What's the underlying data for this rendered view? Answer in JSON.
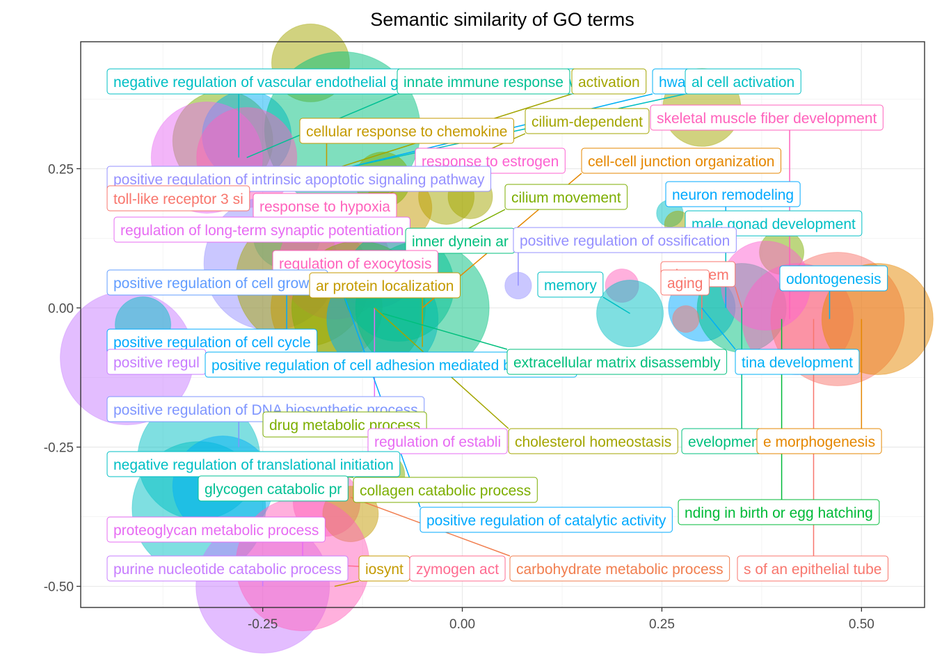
{
  "chart_data": {
    "type": "scatter",
    "title": "Semantic similarity of GO terms",
    "xlabel": "",
    "ylabel": "",
    "xlim": [
      -0.478,
      0.579
    ],
    "ylim": [
      -0.538,
      0.478
    ],
    "x_ticks": [
      -0.25,
      0.0,
      0.25,
      0.5
    ],
    "x_tick_labels": [
      "-0.25",
      "0.00",
      "0.25",
      "0.50"
    ],
    "y_ticks": [
      -0.5,
      -0.25,
      0.0,
      0.25
    ],
    "y_tick_labels": [
      "-0.50",
      "-0.25",
      "0.00",
      "0.25"
    ],
    "grid": true,
    "legend": "none",
    "bubbles": [
      {
        "x": -0.19,
        "y": 0.44,
        "size": 0.035,
        "color": "#a3a500"
      },
      {
        "x": -0.3,
        "y": 0.3,
        "size": 0.045,
        "color": "#7cae00"
      },
      {
        "x": -0.27,
        "y": 0.31,
        "size": 0.04,
        "color": "#00b0f6"
      },
      {
        "x": -0.15,
        "y": 0.32,
        "size": 0.07,
        "color": "#00bf7d"
      },
      {
        "x": -0.32,
        "y": 0.27,
        "size": 0.05,
        "color": "#e76bf3"
      },
      {
        "x": -0.27,
        "y": 0.27,
        "size": 0.045,
        "color": "#ff62bc"
      },
      {
        "x": -0.22,
        "y": 0.13,
        "size": 0.03,
        "color": "#00bfc4"
      },
      {
        "x": -0.02,
        "y": 0.2,
        "size": 0.025,
        "color": "#a3a500"
      },
      {
        "x": -0.08,
        "y": 0.18,
        "size": 0.03,
        "color": "#c49a00"
      },
      {
        "x": -0.1,
        "y": 0.23,
        "size": 0.025,
        "color": "#7cae00"
      },
      {
        "x": 0.01,
        "y": 0.2,
        "size": 0.02,
        "color": "#a3a500"
      },
      {
        "x": -0.24,
        "y": 0.08,
        "size": 0.06,
        "color": "#9590ff"
      },
      {
        "x": -0.2,
        "y": 0.05,
        "size": 0.06,
        "color": "#a3a500"
      },
      {
        "x": -0.16,
        "y": 0.08,
        "size": 0.05,
        "color": "#ff62bc"
      },
      {
        "x": -0.11,
        "y": 0.08,
        "size": 0.04,
        "color": "#e76bf3"
      },
      {
        "x": -0.17,
        "y": 0.0,
        "size": 0.05,
        "color": "#c49a00"
      },
      {
        "x": -0.13,
        "y": 0.0,
        "size": 0.06,
        "color": "#7cae00"
      },
      {
        "x": -0.1,
        "y": -0.02,
        "size": 0.05,
        "color": "#00b0f6"
      },
      {
        "x": -0.05,
        "y": 0.0,
        "size": 0.06,
        "color": "#00bf7d"
      },
      {
        "x": -0.08,
        "y": 0.04,
        "size": 0.05,
        "color": "#00c094"
      },
      {
        "x": 0.07,
        "y": 0.04,
        "size": 0.012,
        "color": "#9590ff"
      },
      {
        "x": 0.2,
        "y": 0.04,
        "size": 0.015,
        "color": "#ff62bc"
      },
      {
        "x": 0.21,
        "y": -0.01,
        "size": 0.03,
        "color": "#00bfc4"
      },
      {
        "x": 0.26,
        "y": 0.17,
        "size": 0.012,
        "color": "#00bfc4"
      },
      {
        "x": 0.27,
        "y": 0.15,
        "size": 0.012,
        "color": "#a3a500"
      },
      {
        "x": 0.3,
        "y": 0.36,
        "size": 0.035,
        "color": "#a3a500"
      },
      {
        "x": 0.4,
        "y": 0.1,
        "size": 0.02,
        "color": "#7cae00"
      },
      {
        "x": 0.3,
        "y": 0.0,
        "size": 0.03,
        "color": "#00a9ff"
      },
      {
        "x": 0.35,
        "y": 0.0,
        "size": 0.04,
        "color": "#00bf7d"
      },
      {
        "x": 0.42,
        "y": -0.02,
        "size": 0.05,
        "color": "#ff62bc"
      },
      {
        "x": 0.47,
        "y": -0.02,
        "size": 0.06,
        "color": "#f8766d"
      },
      {
        "x": 0.52,
        "y": -0.02,
        "size": 0.05,
        "color": "#e58700"
      },
      {
        "x": 0.38,
        "y": 0.04,
        "size": 0.04,
        "color": "#fd61d1"
      },
      {
        "x": 0.28,
        "y": -0.02,
        "size": 0.012,
        "color": "#f8766d"
      },
      {
        "x": -0.42,
        "y": -0.09,
        "size": 0.06,
        "color": "#c77cff"
      },
      {
        "x": -0.4,
        "y": -0.03,
        "size": 0.025,
        "color": "#00bfc4"
      },
      {
        "x": -0.33,
        "y": -0.27,
        "size": 0.055,
        "color": "#00bfc4"
      },
      {
        "x": -0.33,
        "y": -0.36,
        "size": 0.06,
        "color": "#00bfc4"
      },
      {
        "x": -0.3,
        "y": -0.32,
        "size": 0.045,
        "color": "#00b0f6"
      },
      {
        "x": -0.17,
        "y": -0.35,
        "size": 0.03,
        "color": "#ff62bc"
      },
      {
        "x": -0.14,
        "y": -0.37,
        "size": 0.025,
        "color": "#c49a00"
      },
      {
        "x": -0.25,
        "y": -0.5,
        "size": 0.06,
        "color": "#c77cff"
      },
      {
        "x": -0.2,
        "y": -0.46,
        "size": 0.06,
        "color": "#ff62bc"
      },
      {
        "x": -0.1,
        "y": -0.3,
        "size": 0.02,
        "color": "#7cae00"
      }
    ],
    "labels": [
      {
        "text": "negative regulation of vascular endothelial growth factor signaling pathway",
        "color": "#00bfc4",
        "x": -0.28,
        "y": 0.27
      },
      {
        "text": "innate immune response",
        "color": "#00c094",
        "x": -0.27,
        "y": 0.27
      },
      {
        "text": "activation",
        "color": "#a3a500",
        "x": -0.16,
        "y": 0.25
      },
      {
        "text": "hway",
        "color": "#00b0f6",
        "x": -0.15,
        "y": 0.25
      },
      {
        "text": "al cell activation",
        "color": "#00bfc4",
        "x": -0.15,
        "y": 0.25
      },
      {
        "text": "cilium-dependent",
        "color": "#a3a500",
        "x": -0.1,
        "y": 0.2
      },
      {
        "text": "cellular response to chemokine",
        "color": "#c49a00",
        "x": -0.17,
        "y": 0.25
      },
      {
        "text": "skeletal muscle fiber development",
        "color": "#ff62bc",
        "x": 0.41,
        "y": -0.02
      },
      {
        "text": "response to estrogen",
        "color": "#fd61d1",
        "x": -0.25,
        "y": 0.23
      },
      {
        "text": "cell-cell junction organization",
        "color": "#e58700",
        "x": -0.05,
        "y": 0.0
      },
      {
        "text": "positive regulation of intrinsic apoptotic signaling pathway",
        "color": "#9590ff",
        "x": -0.22,
        "y": 0.22
      },
      {
        "text": "neuron remodeling",
        "color": "#00a9ff",
        "x": 0.33,
        "y": 0.0
      },
      {
        "text": "toll-like receptor 3 si",
        "color": "#f8766d",
        "x": -0.35,
        "y": 0.2
      },
      {
        "text": "cilium movement",
        "color": "#7cae00",
        "x": -0.05,
        "y": 0.1
      },
      {
        "text": "response to hypoxia",
        "color": "#ff62bc",
        "x": -0.13,
        "y": 0.15
      },
      {
        "text": "male gonad development",
        "color": "#00bfc4",
        "x": 0.33,
        "y": 0.02
      },
      {
        "text": "regulation of long-term synaptic potentiation",
        "color": "#e76bf3",
        "x": -0.3,
        "y": 0.13
      },
      {
        "text": "inner dynein ar",
        "color": "#00bf7d",
        "x": -0.06,
        "y": 0.07
      },
      {
        "text": "positive regulation of ossification",
        "color": "#9590ff",
        "x": 0.07,
        "y": 0.04
      },
      {
        "text": "regulation of exocytosis",
        "color": "#ff62bc",
        "x": -0.1,
        "y": 0.05
      },
      {
        "text": "al system",
        "color": "#f8766d",
        "x": 0.35,
        "y": 0.0
      },
      {
        "text": "odontogenesis",
        "color": "#00b0f6",
        "x": 0.46,
        "y": -0.02
      },
      {
        "text": "positive regulation of cell growth",
        "color": "#619cff",
        "x": -0.18,
        "y": 0.03
      },
      {
        "text": "ar protein localization",
        "color": "#c49a00",
        "x": -0.05,
        "y": -0.07
      },
      {
        "text": "memory",
        "color": "#00bfc4",
        "x": 0.21,
        "y": -0.01
      },
      {
        "text": "aging",
        "color": "#f8766d",
        "x": 0.3,
        "y": -0.02
      },
      {
        "text": "positive regulation of cell cycle",
        "color": "#00a9ff",
        "x": -0.22,
        "y": 0.03
      },
      {
        "text": "positive regul",
        "color": "#c77cff",
        "x": -0.41,
        "y": -0.1
      },
      {
        "text": "positive regulation of cell adhesion mediated by integrin",
        "color": "#00b0f6",
        "x": -0.14,
        "y": -0.1
      },
      {
        "text": "extracellular matrix disassembly",
        "color": "#00bf7d",
        "x": -0.1,
        "y": -0.01
      },
      {
        "text": "tina development",
        "color": "#00b0f6",
        "x": 0.3,
        "y": 0.0
      },
      {
        "text": "positive regulation of DNA biosynthetic process",
        "color": "#7f96ff",
        "x": -0.28,
        "y": -0.25
      },
      {
        "text": "drug metabolic process",
        "color": "#7cae00",
        "x": -0.1,
        "y": -0.3
      },
      {
        "text": "regulation of establi",
        "color": "#e76bf3",
        "x": -0.11,
        "y": 0.0
      },
      {
        "text": "cholesterol homeostasis",
        "color": "#a3a500",
        "x": -0.11,
        "y": 0.0
      },
      {
        "text": "evelopment",
        "color": "#00bf7d",
        "x": 0.35,
        "y": 0.0
      },
      {
        "text": "e morphogenesis",
        "color": "#e58700",
        "x": 0.5,
        "y": -0.02
      },
      {
        "text": "negative regulation of translational initiation",
        "color": "#00bfc4",
        "x": -0.3,
        "y": -0.27
      },
      {
        "text": "glycogen catabolic pr",
        "color": "#00c094",
        "x": -0.33,
        "y": -0.3
      },
      {
        "text": "collagen catabolic process",
        "color": "#7cae00",
        "x": -0.18,
        "y": -0.3
      },
      {
        "text": "nding in birth or egg hatching",
        "color": "#00ba38",
        "x": 0.4,
        "y": -0.02
      },
      {
        "text": "positive regulation of catalytic activity",
        "color": "#00a9ff",
        "x": -0.15,
        "y": 0.03
      },
      {
        "text": "proteoglycan metabolic process",
        "color": "#e76bf3",
        "x": -0.2,
        "y": -0.46
      },
      {
        "text": "purine nucleotide catabolic process",
        "color": "#c77cff",
        "x": -0.25,
        "y": -0.5
      },
      {
        "text": "iosynt",
        "color": "#c49a00",
        "x": -0.16,
        "y": -0.5
      },
      {
        "text": "zymogen act",
        "color": "#ff6c91",
        "x": -0.2,
        "y": -0.46
      },
      {
        "text": "carbohydrate metabolic process",
        "color": "#f17e4f",
        "x": -0.14,
        "y": -0.34
      },
      {
        "text": "s of an epithelial tube",
        "color": "#f8766d",
        "x": 0.44,
        "y": -0.02
      }
    ]
  }
}
